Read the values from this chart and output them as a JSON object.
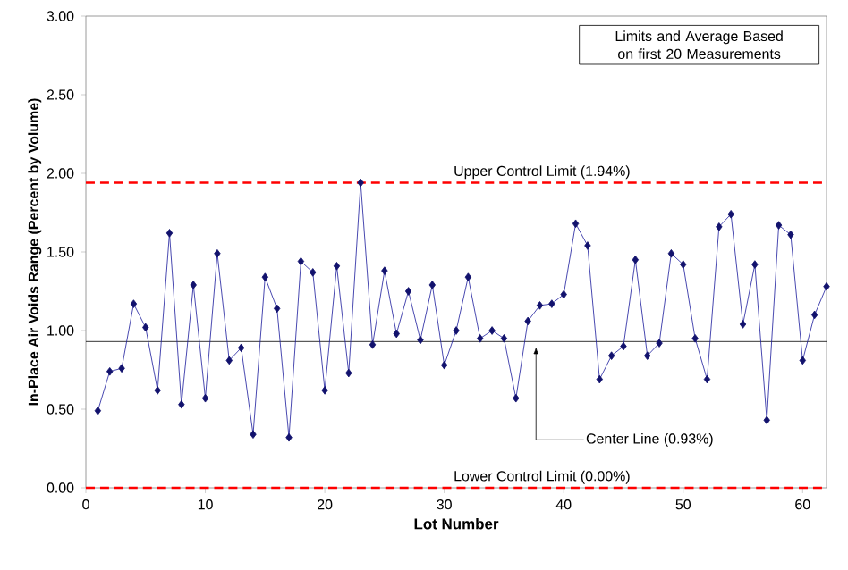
{
  "chart_data": {
    "type": "line",
    "xlabel": "Lot Number",
    "ylabel": "In-Place Air Voids Range (Percent by Volume)",
    "x": [
      1,
      2,
      3,
      4,
      5,
      6,
      7,
      8,
      9,
      10,
      11,
      12,
      13,
      14,
      15,
      16,
      17,
      18,
      19,
      20,
      21,
      22,
      23,
      24,
      25,
      26,
      27,
      28,
      29,
      30,
      31,
      32,
      33,
      34,
      35,
      36,
      37,
      38,
      39,
      40,
      41,
      42,
      43,
      44,
      45,
      46,
      47,
      48,
      49,
      50,
      51,
      52,
      53,
      54,
      55,
      56,
      57,
      58,
      59,
      60,
      61,
      62
    ],
    "series": [
      {
        "color": "#1a1a9c",
        "values": [
          0.49,
          0.74,
          0.76,
          1.17,
          1.02,
          0.62,
          1.62,
          0.53,
          1.29,
          0.57,
          1.49,
          0.81,
          0.89,
          0.34,
          1.34,
          1.14,
          0.32,
          1.44,
          1.37,
          0.62,
          1.41,
          0.73,
          1.94,
          0.91,
          1.38,
          0.98,
          1.25,
          0.94,
          1.29,
          0.78,
          1.0,
          1.34,
          0.95,
          1.0,
          0.95,
          0.57,
          1.06,
          1.16,
          1.17,
          1.23,
          1.68,
          1.54,
          0.69,
          0.84,
          0.9,
          1.45,
          0.84,
          0.92,
          1.49,
          1.42,
          0.95,
          0.69,
          1.66,
          1.74,
          1.04,
          1.42,
          0.43,
          1.67,
          1.61,
          0.81,
          1.1,
          1.28
        ]
      }
    ],
    "xlim": [
      0,
      62
    ],
    "xticks": [
      0,
      10,
      20,
      30,
      40,
      50,
      60
    ],
    "ylim": [
      0,
      3
    ],
    "yticks": [
      {
        "value": 0,
        "label": "0.00"
      },
      {
        "value": 0.5,
        "label": "0.50"
      },
      {
        "value": 1,
        "label": "1.00"
      },
      {
        "value": 1.5,
        "label": "1.50"
      },
      {
        "value": 2,
        "label": "2.00"
      },
      {
        "value": 2.5,
        "label": "2.50"
      },
      {
        "value": 3,
        "label": "3.00"
      }
    ],
    "marker": "diamond",
    "line_style": "solid",
    "ref_lines": [
      {
        "axis": "y",
        "value": 1.94,
        "label": "Upper Control Limit (1.94%)",
        "color": "#ff0000",
        "line_style": "dashed"
      },
      {
        "axis": "y",
        "value": 0.93,
        "label": "Center Line (0.93%)",
        "color": "#000000",
        "line_style": "solid"
      },
      {
        "axis": "y",
        "value": 0,
        "label": "Lower Control Limit (0.00%)",
        "color": "#ff0000",
        "line_style": "dashed"
      }
    ],
    "annotations": [
      "Limits and Average Based on first 20 Measurements"
    ]
  }
}
